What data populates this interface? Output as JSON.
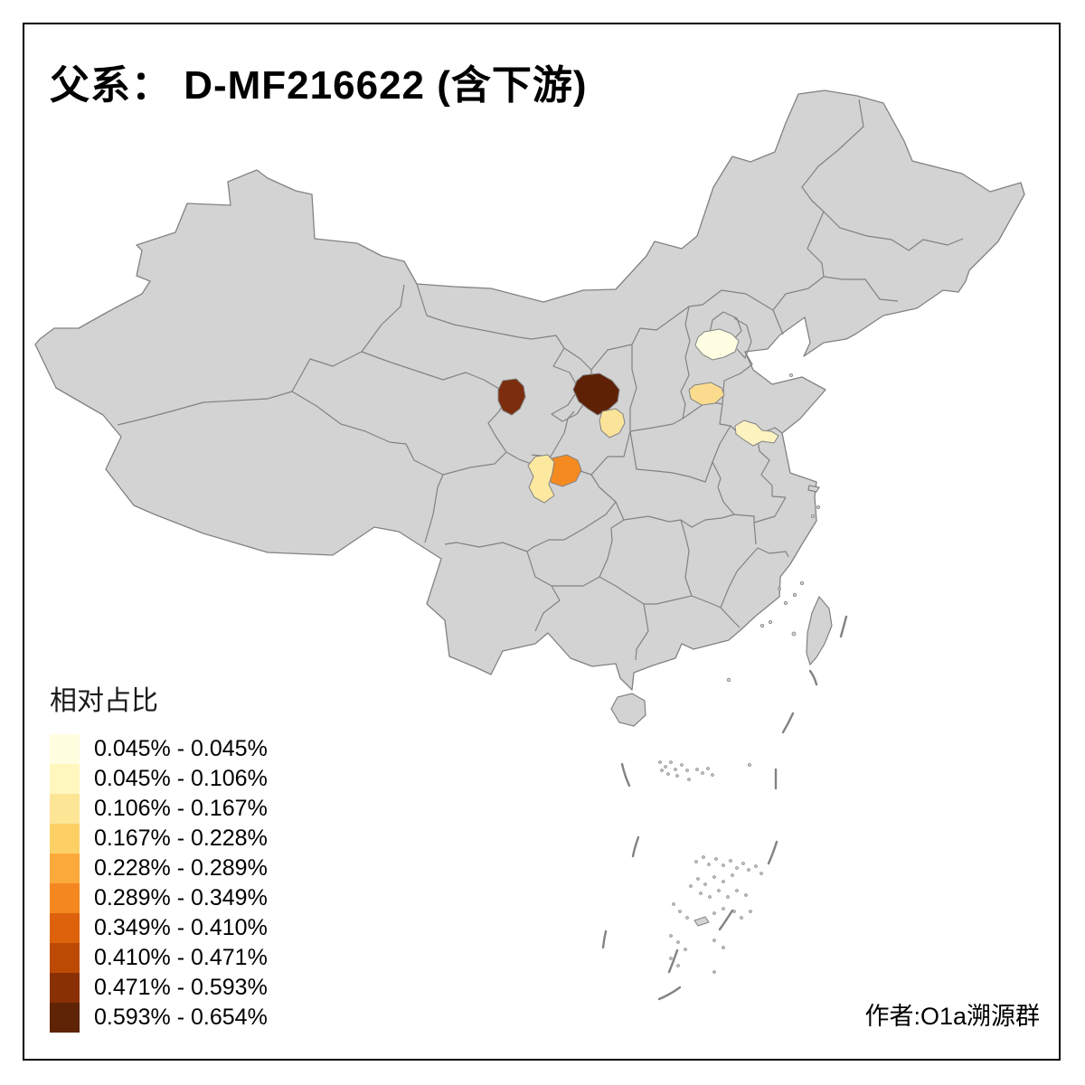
{
  "title": "父系： D-MF216622 (含下游)",
  "legend": {
    "title": "相对占比",
    "items": [
      {
        "label": "0.045% - 0.045%",
        "color": "#FFFEE0"
      },
      {
        "label": "0.045% - 0.106%",
        "color": "#FFF7BE"
      },
      {
        "label": "0.106% - 0.167%",
        "color": "#FDE596"
      },
      {
        "label": "0.167% - 0.228%",
        "color": "#FDD065"
      },
      {
        "label": "0.228% - 0.289%",
        "color": "#FCA93C"
      },
      {
        "label": "0.289% - 0.349%",
        "color": "#F4871F"
      },
      {
        "label": "0.349% - 0.410%",
        "color": "#DE620C"
      },
      {
        "label": "0.410% - 0.471%",
        "color": "#BD4A04"
      },
      {
        "label": "0.471% - 0.593%",
        "color": "#8A3005"
      },
      {
        "label": "0.593% - 0.654%",
        "color": "#5F2306"
      }
    ]
  },
  "attribution": "作者:O1a溯源群",
  "map": {
    "land_color": "#D3D3D3",
    "border_color": "#828282",
    "sea_color": "#FFFFFF",
    "frame_color": "#000000",
    "regions": [
      {
        "id": "region-1",
        "color": "#FFFEE3",
        "legend_class": "0.045% - 0.045%"
      },
      {
        "id": "region-2",
        "color": "#FBDC8F",
        "legend_class": "0.106% - 0.167%"
      },
      {
        "id": "region-3",
        "color": "#FCF3C1",
        "legend_class": "0.045% - 0.106%"
      },
      {
        "id": "region-4",
        "color": "#7B2D0E",
        "legend_class": "0.471% - 0.593%"
      },
      {
        "id": "region-5",
        "color": "#5E2106",
        "legend_class": "0.593% - 0.654%"
      },
      {
        "id": "region-6",
        "color": "#FBE39A",
        "legend_class": "0.106% - 0.167%"
      },
      {
        "id": "region-7",
        "color": "#F58A21",
        "legend_class": "0.289% - 0.349%"
      },
      {
        "id": "region-8",
        "color": "#FDE8A0",
        "legend_class": "0.106% - 0.167%"
      }
    ]
  }
}
